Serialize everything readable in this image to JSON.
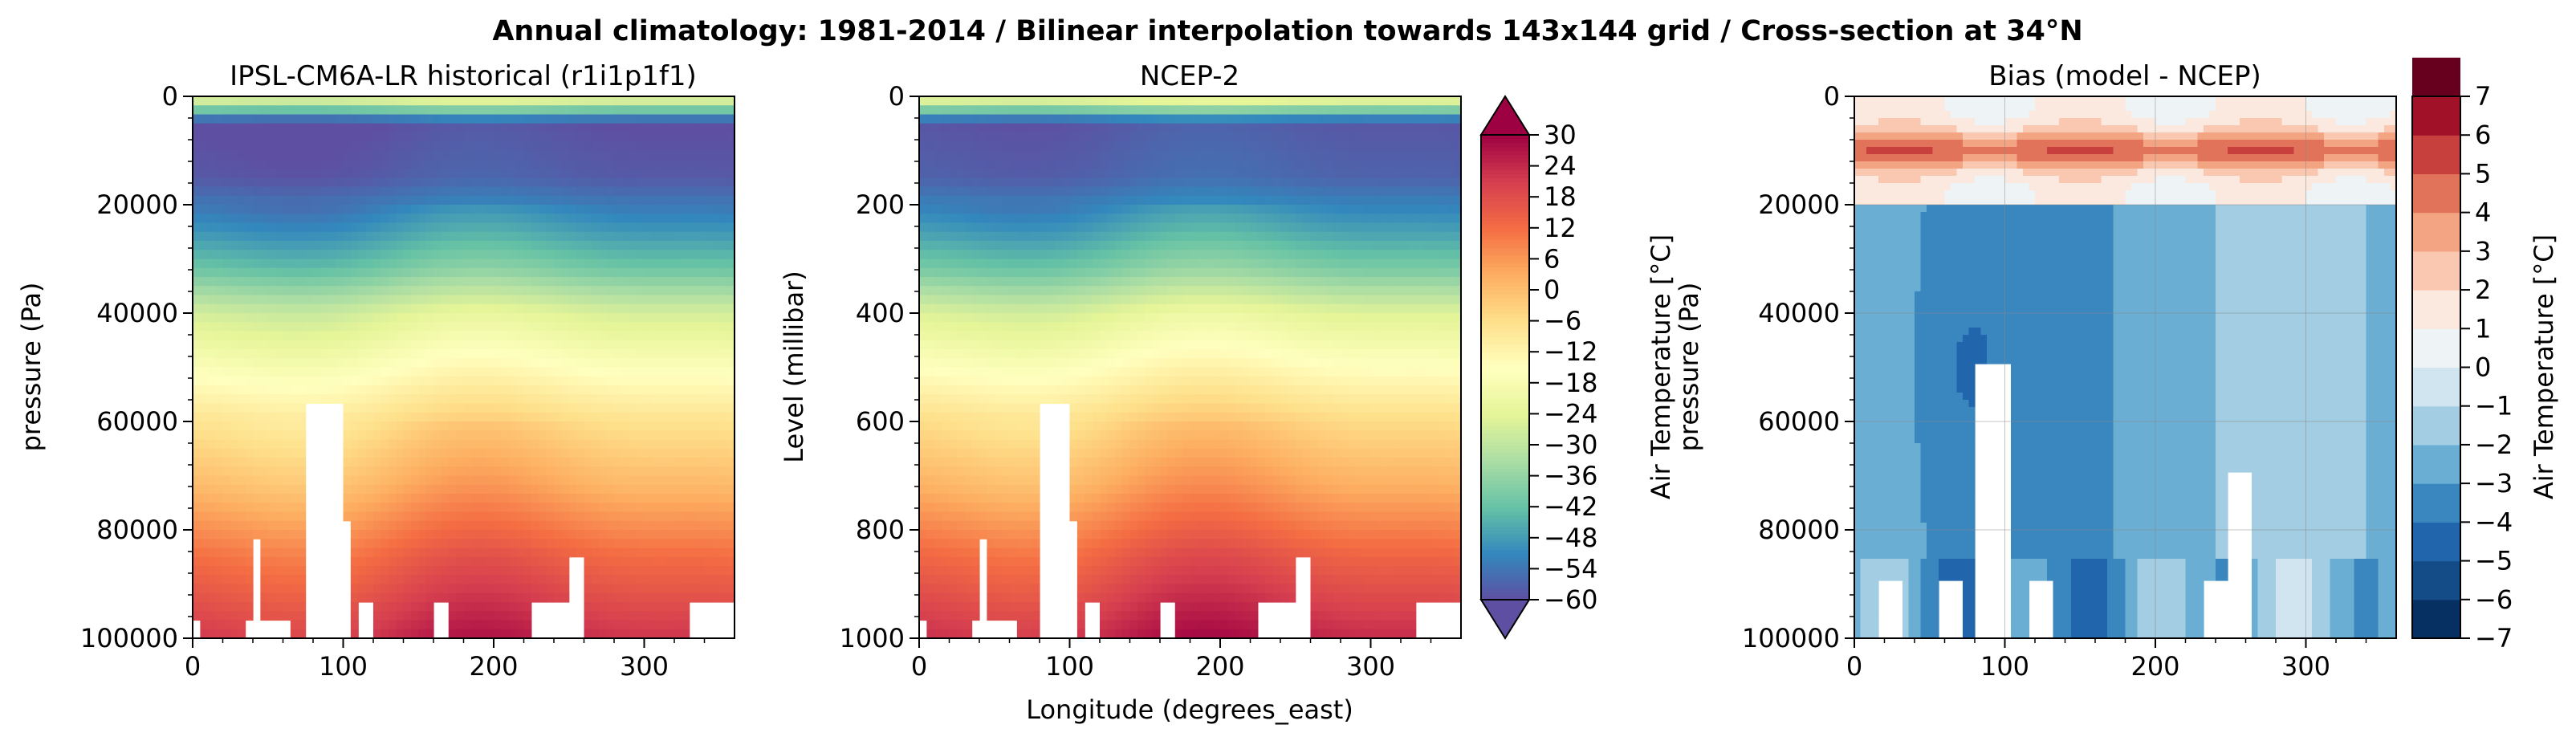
{
  "figure": {
    "suptitle": "Annual climatology: 1981-2014 / Bilinear interpolation towards 143x144 grid / Cross-section at 34°N",
    "shared_xlabel": "Longitude (degrees_east)"
  },
  "chart_data": [
    {
      "type": "heatmap",
      "title": "IPSL-CM6A-LR historical (r1i1p1f1)",
      "xlabel": "",
      "ylabel": "pressure (Pa)",
      "xlim": [
        0,
        360
      ],
      "ylim": [
        100000,
        0
      ],
      "xticks": [
        "0",
        "100",
        "200",
        "300"
      ],
      "yticks": [
        "0",
        "20000",
        "40000",
        "60000",
        "80000",
        "100000"
      ],
      "missing_region": "Tibetan Plateau (~75–100°E) white below ~57000 Pa",
      "level_mean_temp_c": [
        {
          "p": 0,
          "t": -20
        },
        {
          "p": 5000,
          "t": -60
        },
        {
          "p": 15000,
          "t": -58
        },
        {
          "p": 25000,
          "t": -48
        },
        {
          "p": 32000,
          "t": -40
        },
        {
          "p": 40000,
          "t": -26
        },
        {
          "p": 50000,
          "t": -16
        },
        {
          "p": 60000,
          "t": -6
        },
        {
          "p": 72000,
          "t": 2
        },
        {
          "p": 85000,
          "t": 13
        },
        {
          "p": 92500,
          "t": 18
        },
        {
          "p": 100000,
          "t": 23
        }
      ]
    },
    {
      "type": "heatmap",
      "title": "NCEP-2",
      "xlabel": "Longitude (degrees_east)",
      "ylabel": "Level (millibar)",
      "xlim": [
        0,
        360
      ],
      "ylim": [
        1000,
        0
      ],
      "xticks": [
        "0",
        "100",
        "200",
        "300"
      ],
      "yticks": [
        "0",
        "200",
        "400",
        "600",
        "800",
        "1000"
      ],
      "missing_region": "Tibetan Plateau (~80–100°E) white below ~570 mbar",
      "colorbar": {
        "label": "Air Temperature [°C]",
        "vmin": -60,
        "vmax": 30,
        "step": 6,
        "ticks": [
          "30",
          "24",
          "18",
          "12",
          "6",
          "0",
          "−6",
          "−12",
          "−18",
          "−24",
          "−30",
          "−36",
          "−42",
          "−48",
          "−54",
          "−60"
        ],
        "colormap": [
          "#5e4fa2",
          "#3288bd",
          "#66c2a5",
          "#abdda4",
          "#e6f598",
          "#ffffbf",
          "#fee08b",
          "#fdae61",
          "#f46d43",
          "#d53e4f",
          "#9e0142"
        ]
      }
    },
    {
      "type": "heatmap",
      "title": "Bias (model - NCEP)",
      "xlabel": "",
      "ylabel": "pressure (Pa)",
      "xlim": [
        0,
        360
      ],
      "ylim": [
        100000,
        0
      ],
      "xticks": [
        "0",
        "100",
        "200",
        "300"
      ],
      "yticks": [
        "0",
        "20000",
        "40000",
        "60000",
        "80000",
        "100000"
      ],
      "grid": true,
      "bias_pattern": "warm bias +2 to +5 °C near 5000–15000 Pa; cold bias −2 to −5 °C from 20000 to 100000 Pa",
      "colorbar": {
        "label": "Air Temperature [°C]",
        "vmin": -7,
        "vmax": 7,
        "step": 1,
        "ticks": [
          "7",
          "6",
          "5",
          "4",
          "3",
          "2",
          "1",
          "0",
          "−1",
          "−2",
          "−3",
          "−4",
          "−5",
          "−6",
          "−7"
        ],
        "colormap": [
          "#053061",
          "#134c87",
          "#2166ac",
          "#3a87bf",
          "#6aaed3",
          "#a2cde3",
          "#d0e5f0",
          "#eef3f6",
          "#fbe8de",
          "#fac8b0",
          "#f3a482",
          "#e0735a",
          "#c7403e",
          "#a11228",
          "#67001f"
        ]
      }
    }
  ]
}
